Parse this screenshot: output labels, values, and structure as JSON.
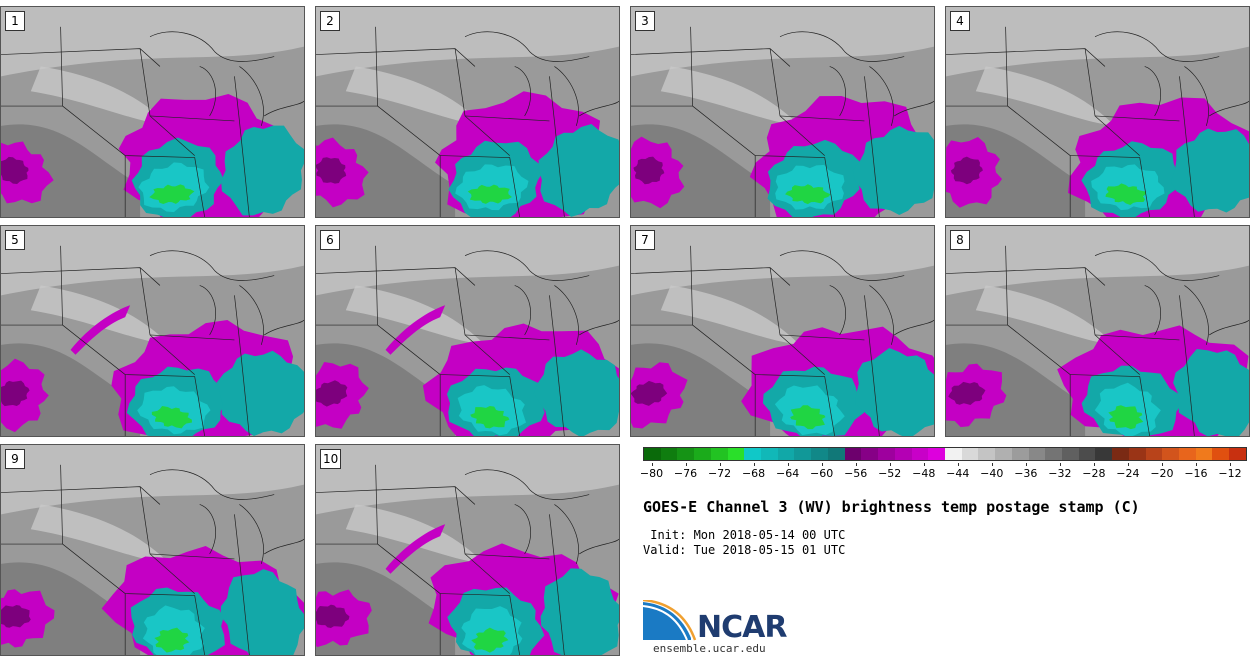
{
  "panels": [
    {
      "label": "1",
      "variant": 0
    },
    {
      "label": "2",
      "variant": 1
    },
    {
      "label": "3",
      "variant": 2
    },
    {
      "label": "4",
      "variant": 3
    },
    {
      "label": "5",
      "variant": 4
    },
    {
      "label": "6",
      "variant": 5
    },
    {
      "label": "7",
      "variant": 6
    },
    {
      "label": "8",
      "variant": 7
    },
    {
      "label": "9",
      "variant": 8
    },
    {
      "label": "10",
      "variant": 9
    }
  ],
  "colorbar": {
    "ticks": [
      "−80",
      "−76",
      "−72",
      "−68",
      "−64",
      "−60",
      "−56",
      "−52",
      "−48",
      "−44",
      "−40",
      "−36",
      "−32",
      "−28",
      "−24",
      "−20",
      "−16",
      "−12"
    ],
    "tick_values": [
      -80,
      -76,
      -72,
      -68,
      -64,
      -60,
      -56,
      -52,
      -48,
      -44,
      -40,
      -36,
      -32,
      -28,
      -24,
      -20,
      -16,
      -12
    ],
    "range": [
      -81,
      -10
    ],
    "colors": [
      "#0a6a0a",
      "#0f7d0f",
      "#159315",
      "#1bab1b",
      "#22c322",
      "#2adf2a",
      "#10c8c8",
      "#11b8b8",
      "#11a8a8",
      "#119898",
      "#118888",
      "#117878",
      "#6d006d",
      "#860086",
      "#9e009e",
      "#b400b4",
      "#c800c8",
      "#dd00dd",
      "#f2f2f2",
      "#d9d9d9",
      "#c4c4c4",
      "#b0b0b0",
      "#9c9c9c",
      "#888888",
      "#747474",
      "#606060",
      "#4c4c4c",
      "#383838",
      "#7a2a14",
      "#9a3416",
      "#b8431a",
      "#d2541c",
      "#e8651c",
      "#f07a1c",
      "#e05010",
      "#c83010"
    ]
  },
  "title": "GOES-E Channel 3 (WV) brightness temp postage stamp (C)",
  "init": " Init: Mon 2018-05-14 00 UTC",
  "valid": "Valid: Tue 2018-05-15 01 UTC",
  "logo": {
    "word": "NCAR",
    "url": "ensemble.ucar.edu"
  },
  "style": {
    "bg_gray": "#9a9a9a",
    "light_gray": "#c8c8c8",
    "dark_gray": "#6e6e6e",
    "magenta": "#c400c4",
    "dark_magenta": "#7d007d",
    "teal": "#13a8a8",
    "cyan": "#19c6c6",
    "green": "#22d822",
    "boundary": "#222222"
  }
}
